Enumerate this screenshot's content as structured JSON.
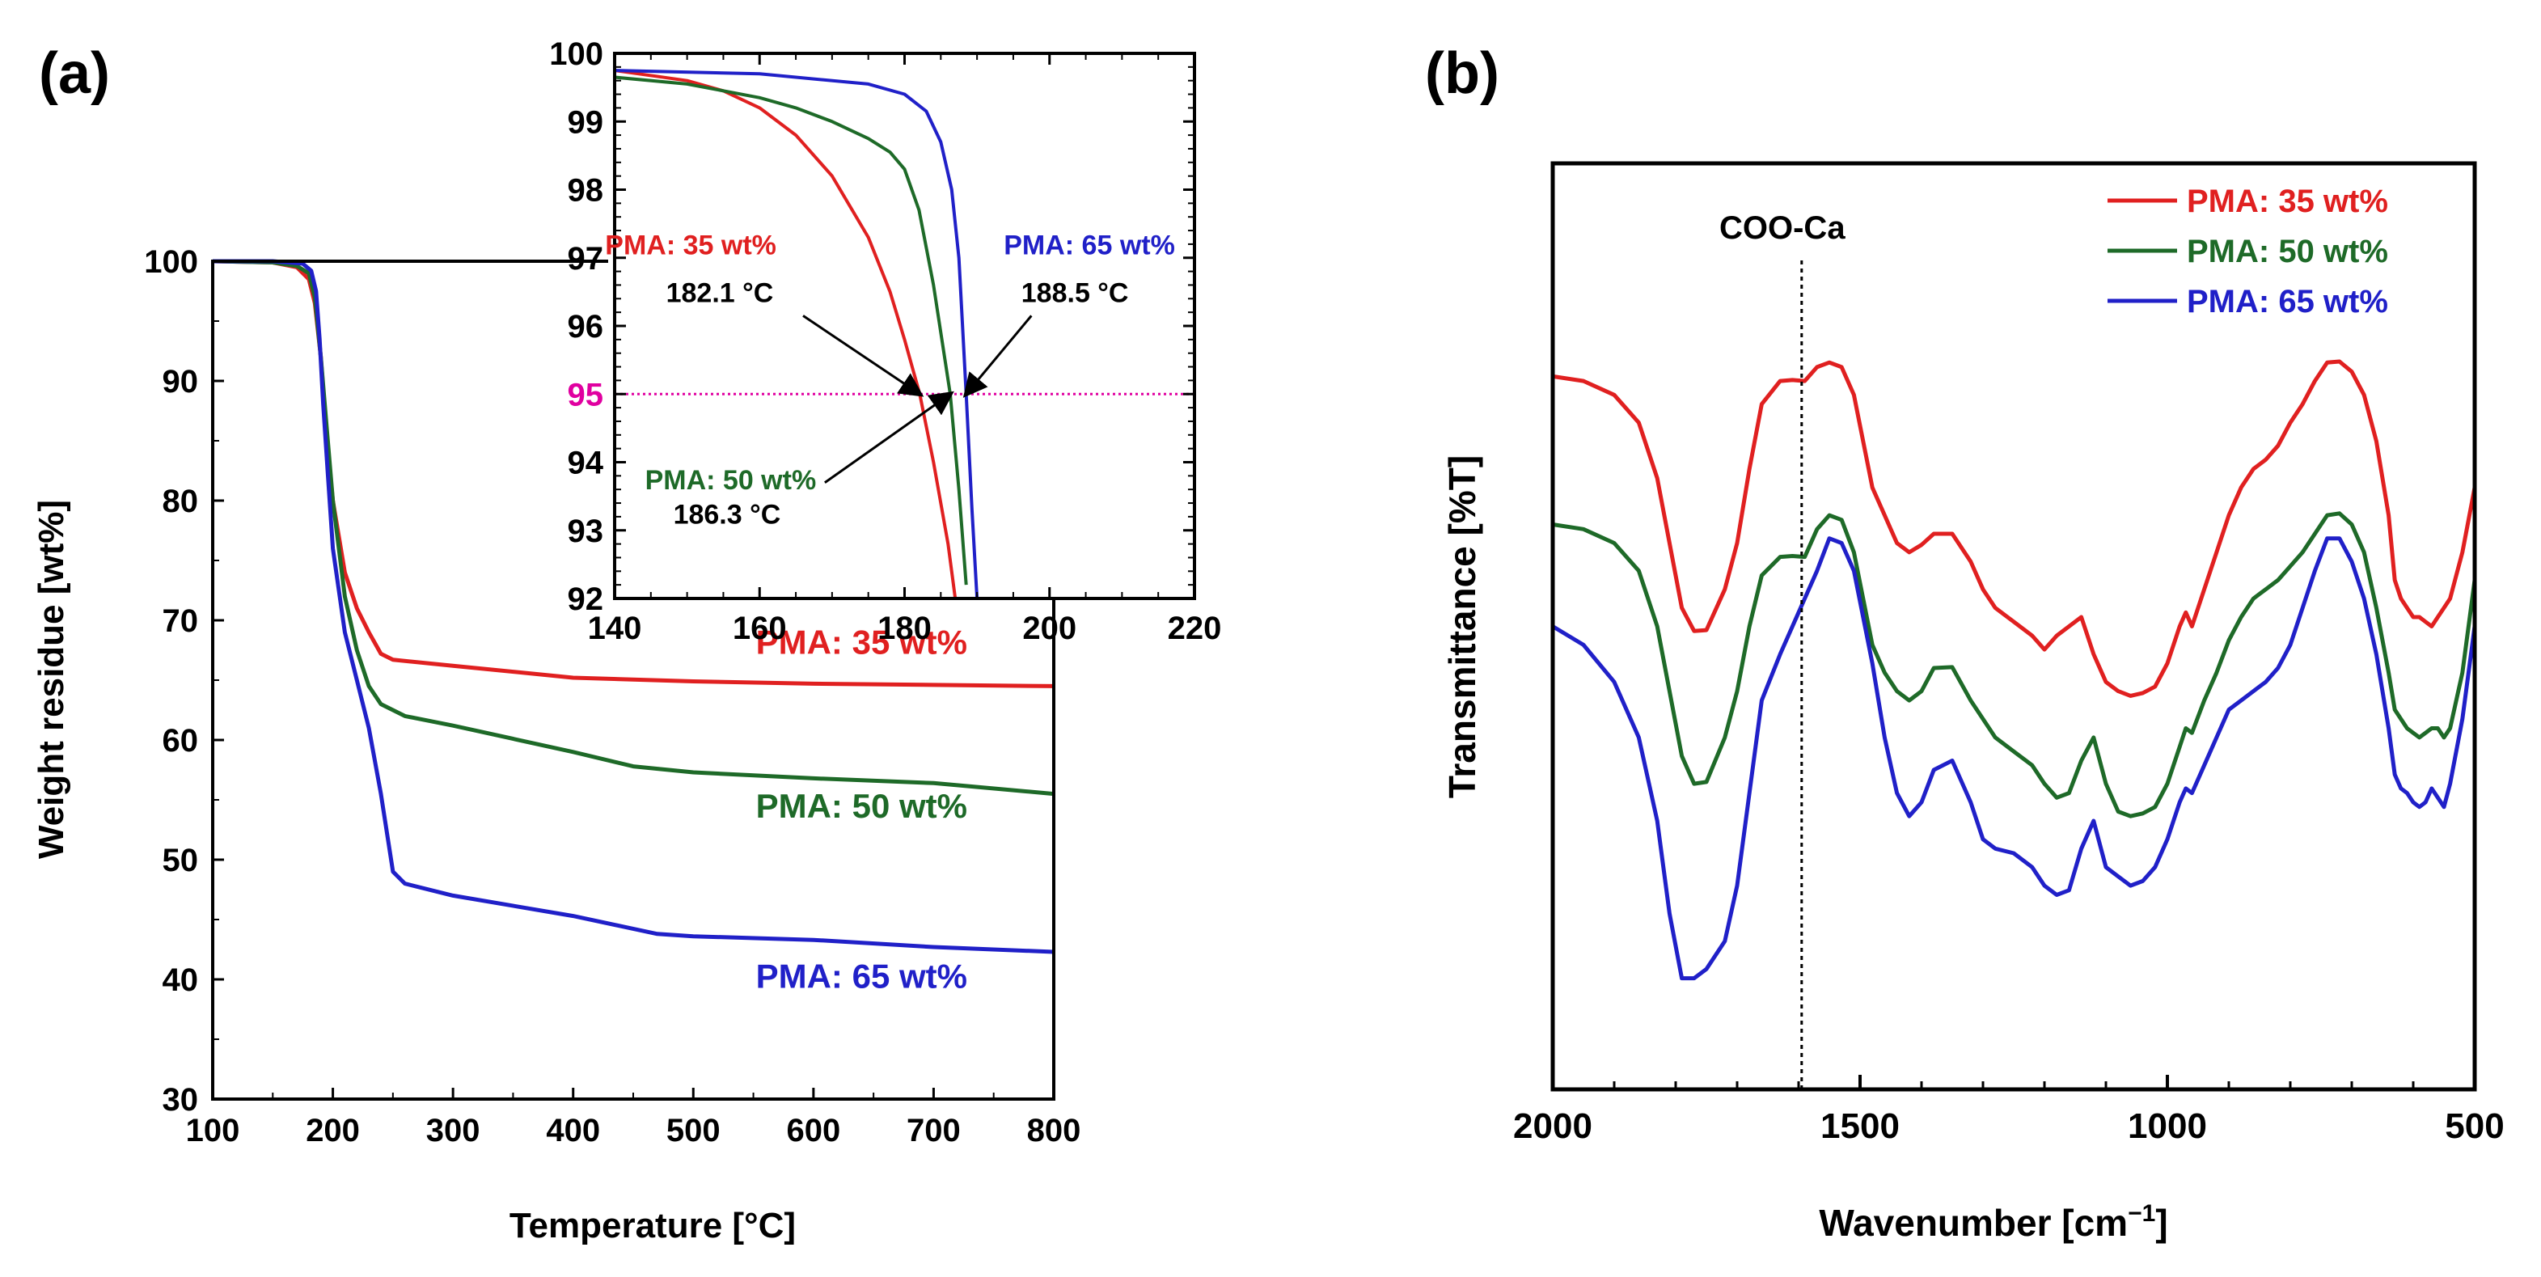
{
  "colors": {
    "red": "#e02020",
    "green": "#1e6a28",
    "blue": "#2020c8",
    "magenta": "#e000a0",
    "axis": "#000000"
  },
  "chart_data": [
    {
      "id": "a",
      "panel_label": "(a)",
      "type": "line",
      "title": "",
      "xlabel": "Temperature [°C]",
      "ylabel": "Weight residue [wt%]",
      "xlim": [
        100,
        800
      ],
      "ylim": [
        30,
        100
      ],
      "xticks": [
        100,
        200,
        300,
        400,
        500,
        600,
        700,
        800
      ],
      "yticks": [
        30,
        40,
        50,
        60,
        70,
        80,
        90,
        100
      ],
      "xtick_labels": [
        "100",
        "200",
        "300",
        "400",
        "500",
        "600",
        "700",
        "800"
      ],
      "ytick_labels": [
        "30",
        "40",
        "50",
        "60",
        "70",
        "80",
        "90",
        "100"
      ],
      "grid": false,
      "series": [
        {
          "name": "PMA: 35 wt%",
          "color": "#e02020",
          "label_at": [
            640,
            67.2
          ],
          "x": [
            100,
            150,
            170,
            180,
            185,
            190,
            195,
            200,
            210,
            220,
            230,
            240,
            250,
            300,
            400,
            500,
            600,
            700,
            800
          ],
          "y": [
            100,
            99.9,
            99.5,
            98.5,
            96.5,
            92,
            85,
            80,
            74,
            71,
            69,
            67.2,
            66.7,
            66.2,
            65.2,
            64.9,
            64.7,
            64.6,
            64.5
          ]
        },
        {
          "name": "PMA: 50 wt%",
          "color": "#1e6a28",
          "label_at": [
            640,
            53.5
          ],
          "x": [
            100,
            150,
            170,
            180,
            185,
            190,
            195,
            200,
            210,
            220,
            230,
            240,
            260,
            300,
            400,
            450,
            500,
            600,
            700,
            800
          ],
          "y": [
            100,
            99.9,
            99.6,
            99,
            97,
            92,
            86,
            80,
            72,
            67.5,
            64.5,
            63,
            62,
            61.2,
            59,
            57.8,
            57.3,
            56.8,
            56.4,
            55.5
          ]
        },
        {
          "name": "PMA: 65 wt%",
          "color": "#2020c8",
          "label_at": [
            640,
            39.3
          ],
          "x": [
            100,
            150,
            175,
            182,
            186,
            189,
            192,
            196,
            200,
            210,
            220,
            230,
            240,
            250,
            260,
            300,
            400,
            470,
            500,
            600,
            700,
            800
          ],
          "y": [
            100,
            100,
            99.8,
            99.2,
            97.5,
            93.5,
            88,
            82,
            76,
            69,
            65,
            61,
            55.5,
            49,
            48,
            47,
            45.3,
            43.8,
            43.6,
            43.3,
            42.7,
            42.3
          ]
        }
      ]
    },
    {
      "id": "a-inset",
      "type": "line",
      "title": "",
      "xlim": [
        140,
        220
      ],
      "ylim": [
        92,
        100
      ],
      "xticks": [
        140,
        160,
        180,
        200,
        220
      ],
      "yticks": [
        92,
        93,
        94,
        95,
        96,
        97,
        98,
        99,
        100
      ],
      "xtick_labels": [
        "140",
        "160",
        "180",
        "200",
        "220"
      ],
      "ytick_labels": [
        "92",
        "93",
        "94",
        "95",
        "96",
        "97",
        "98",
        "99",
        "100"
      ],
      "reference_line": {
        "y": 95,
        "color": "#e000a0",
        "style": "dotted"
      },
      "series": [
        {
          "name": "PMA: 35 wt%",
          "color": "#e02020",
          "x": [
            140,
            150,
            155,
            160,
            165,
            170,
            175,
            178,
            180,
            182.1,
            184,
            186,
            187
          ],
          "y": [
            99.75,
            99.6,
            99.45,
            99.2,
            98.8,
            98.2,
            97.3,
            96.5,
            95.8,
            95,
            94,
            92.8,
            92
          ]
        },
        {
          "name": "PMA: 50 wt%",
          "color": "#1e6a28",
          "x": [
            140,
            150,
            160,
            165,
            170,
            175,
            178,
            180,
            182,
            184,
            186.3,
            187.5,
            188.5
          ],
          "y": [
            99.65,
            99.55,
            99.35,
            99.2,
            99,
            98.75,
            98.55,
            98.3,
            97.7,
            96.6,
            95,
            93.6,
            92.2
          ]
        },
        {
          "name": "PMA: 65 wt%",
          "color": "#2020c8",
          "x": [
            140,
            160,
            175,
            180,
            183,
            185,
            186.5,
            187.5,
            188.5,
            189.3,
            190
          ],
          "y": [
            99.75,
            99.7,
            99.55,
            99.4,
            99.15,
            98.7,
            98,
            97,
            95,
            93.3,
            92
          ]
        }
      ],
      "annotations": [
        {
          "name": "PMA: 35 wt%",
          "value": "182.1 °C",
          "color": "#e02020",
          "label_at": [
            150.5,
            97.05
          ],
          "value_at": [
            154.5,
            96.35
          ],
          "arrow_from": [
            166,
            96.15
          ],
          "arrow_to": [
            182.1,
            95
          ]
        },
        {
          "name": "PMA: 65 wt%",
          "value": "188.5 °C",
          "color": "#2020c8",
          "label_at": [
            205.5,
            97.05
          ],
          "value_at": [
            203.5,
            96.35
          ],
          "arrow_from": [
            197.5,
            96.15
          ],
          "arrow_to": [
            188.5,
            95
          ]
        },
        {
          "name": "PMA: 50 wt%",
          "value": "186.3 °C",
          "color": "#1e6a28",
          "label_at": [
            156,
            93.6
          ],
          "value_at": [
            155.5,
            93.1
          ],
          "arrow_from": [
            169,
            93.7
          ],
          "arrow_to": [
            186.3,
            95
          ]
        }
      ]
    },
    {
      "id": "b",
      "panel_label": "(b)",
      "type": "line",
      "title": "",
      "xlabel": "Wavenumber [cm",
      "xlabel_sup": "−1",
      "xlabel_end": "]",
      "ylabel": "Transmittance [%T]",
      "xlim": [
        2000,
        500
      ],
      "ylim": [
        0,
        100
      ],
      "reversed_x": true,
      "xticks": [
        2000,
        1500,
        1000,
        500
      ],
      "xtick_labels": [
        "2000",
        "1500",
        "1000",
        "500"
      ],
      "y_tick_labels_shown": false,
      "grid": false,
      "reference_line": {
        "x": 1595,
        "label": "COO-Ca",
        "style": "dotted"
      },
      "legend_position": "top-right",
      "series": [
        {
          "name": "PMA: 35 wt%",
          "color": "#e02020",
          "x": [
            2000,
            1950,
            1900,
            1860,
            1830,
            1810,
            1790,
            1770,
            1750,
            1720,
            1700,
            1680,
            1660,
            1630,
            1610,
            1590,
            1570,
            1550,
            1530,
            1510,
            1480,
            1460,
            1440,
            1420,
            1400,
            1380,
            1350,
            1320,
            1300,
            1280,
            1250,
            1220,
            1200,
            1180,
            1160,
            1140,
            1120,
            1100,
            1080,
            1060,
            1040,
            1020,
            1000,
            980,
            970,
            960,
            940,
            920,
            900,
            880,
            860,
            840,
            820,
            800,
            780,
            760,
            740,
            720,
            700,
            680,
            660,
            640,
            630,
            620,
            610,
            600,
            590,
            580,
            570,
            560,
            550,
            540,
            520,
            500
          ],
          "y": [
            77,
            76.5,
            75,
            72,
            66,
            59,
            52,
            49.5,
            49.6,
            54,
            59,
            67,
            74,
            76.5,
            76.6,
            76.5,
            78,
            78.5,
            78,
            75,
            65,
            62,
            59,
            58,
            58.8,
            60,
            60,
            57,
            54,
            52,
            50.5,
            49,
            47.5,
            49,
            50,
            51,
            47,
            44,
            43,
            42.5,
            42.8,
            43.5,
            46,
            50,
            51.5,
            50,
            54,
            58,
            62,
            65,
            67,
            68,
            69.5,
            72,
            74,
            76.5,
            78.5,
            78.6,
            77.5,
            75,
            70,
            62,
            55,
            53,
            52,
            51,
            51,
            50.5,
            50,
            51,
            52,
            53,
            58,
            65
          ]
        },
        {
          "name": "PMA: 50 wt%",
          "color": "#1e6a28",
          "x": [
            2000,
            1950,
            1900,
            1860,
            1830,
            1810,
            1790,
            1770,
            1750,
            1720,
            1700,
            1680,
            1660,
            1630,
            1610,
            1590,
            1570,
            1550,
            1530,
            1510,
            1480,
            1460,
            1440,
            1420,
            1400,
            1380,
            1350,
            1320,
            1300,
            1280,
            1250,
            1220,
            1200,
            1180,
            1160,
            1140,
            1120,
            1100,
            1080,
            1060,
            1040,
            1020,
            1000,
            980,
            970,
            960,
            940,
            920,
            900,
            880,
            860,
            840,
            820,
            800,
            780,
            760,
            740,
            720,
            700,
            680,
            660,
            640,
            630,
            620,
            610,
            600,
            590,
            580,
            570,
            560,
            550,
            540,
            520,
            500
          ],
          "y": [
            61,
            60.5,
            59,
            56,
            50,
            43,
            36,
            33,
            33.2,
            38,
            43,
            50,
            55.5,
            57.5,
            57.6,
            57.5,
            60.5,
            62,
            61.5,
            58,
            48,
            45,
            43,
            42,
            43,
            45.5,
            45.6,
            42,
            40,
            38,
            36.5,
            35,
            33,
            31.5,
            32,
            35.5,
            38,
            33,
            30,
            29.5,
            29.8,
            30.5,
            33,
            37,
            39,
            38.5,
            42,
            45,
            48.5,
            51,
            53,
            54,
            55,
            56.5,
            58,
            60,
            62,
            62.2,
            61,
            58,
            52,
            45,
            41,
            40,
            39,
            38.5,
            38,
            38.5,
            39,
            39,
            38,
            39,
            45,
            55
          ]
        },
        {
          "name": "PMA: 65 wt%",
          "color": "#2020c8",
          "x": [
            2000,
            1950,
            1900,
            1860,
            1830,
            1810,
            1790,
            1770,
            1750,
            1720,
            1700,
            1680,
            1660,
            1630,
            1610,
            1590,
            1570,
            1550,
            1530,
            1510,
            1480,
            1460,
            1440,
            1420,
            1400,
            1380,
            1350,
            1320,
            1300,
            1280,
            1250,
            1220,
            1200,
            1180,
            1160,
            1140,
            1120,
            1100,
            1080,
            1060,
            1040,
            1020,
            1000,
            980,
            970,
            960,
            940,
            920,
            900,
            880,
            860,
            840,
            820,
            800,
            780,
            760,
            740,
            720,
            700,
            680,
            660,
            640,
            630,
            620,
            610,
            600,
            590,
            580,
            570,
            560,
            550,
            540,
            520,
            500
          ],
          "y": [
            50,
            48,
            44,
            38,
            29,
            19,
            12,
            12,
            13,
            16,
            22,
            32,
            42,
            47,
            50,
            53,
            56,
            59.5,
            59,
            56,
            46,
            38,
            32,
            29.5,
            31,
            34.5,
            35.5,
            31,
            27,
            26,
            25.5,
            24,
            22,
            21,
            21.5,
            26,
            29,
            24,
            23,
            22,
            22.5,
            24,
            27,
            31,
            32.5,
            32,
            35,
            38,
            41,
            42,
            43,
            44,
            45.5,
            48,
            52,
            56,
            59.5,
            59.5,
            57,
            53,
            47,
            39,
            34,
            32.5,
            32,
            31,
            30.5,
            31,
            32.5,
            31.5,
            30.5,
            33,
            40,
            50
          ]
        }
      ]
    }
  ]
}
